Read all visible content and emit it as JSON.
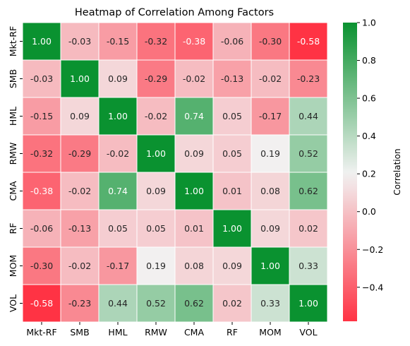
{
  "chart_data": {
    "type": "heatmap",
    "title": "Heatmap of Correlation Among Factors",
    "row_labels": [
      "Mkt-RF",
      "SMB",
      "HML",
      "RMW",
      "CMA",
      "RF",
      "MOM",
      "VOL"
    ],
    "col_labels": [
      "Mkt-RF",
      "SMB",
      "HML",
      "RMW",
      "CMA",
      "RF",
      "MOM",
      "VOL"
    ],
    "values": [
      [
        1.0,
        -0.03,
        -0.15,
        -0.32,
        -0.38,
        -0.06,
        -0.3,
        -0.58
      ],
      [
        -0.03,
        1.0,
        0.09,
        -0.29,
        -0.02,
        -0.13,
        -0.02,
        -0.23
      ],
      [
        -0.15,
        0.09,
        1.0,
        -0.02,
        0.74,
        0.05,
        -0.17,
        0.44
      ],
      [
        -0.32,
        -0.29,
        -0.02,
        1.0,
        0.09,
        0.05,
        0.19,
        0.52
      ],
      [
        -0.38,
        -0.02,
        0.74,
        0.09,
        1.0,
        0.01,
        0.08,
        0.62
      ],
      [
        -0.06,
        -0.13,
        0.05,
        0.05,
        0.01,
        1.0,
        0.09,
        0.02
      ],
      [
        -0.3,
        -0.02,
        -0.17,
        0.19,
        0.08,
        0.09,
        1.0,
        0.33
      ],
      [
        -0.58,
        -0.23,
        0.44,
        0.52,
        0.62,
        0.02,
        0.33,
        1.0
      ]
    ],
    "colorbar": {
      "label": "Correlation",
      "vmin": -0.58,
      "vmax": 1.0,
      "ticks": [
        1.0,
        0.8,
        0.6,
        0.4,
        0.2,
        0.0,
        -0.2,
        -0.4
      ],
      "tick_labels": [
        "1.0",
        "0.8",
        "0.6",
        "0.4",
        "0.2",
        "0.0",
        "−0.2",
        "−0.4"
      ]
    },
    "colors": {
      "low": "#ff3344",
      "mid": "#f2f2f2",
      "high": "#0a9230",
      "grid_lines": "#ffffff",
      "dark_text": "#262626",
      "light_text": "#ffffff"
    }
  }
}
